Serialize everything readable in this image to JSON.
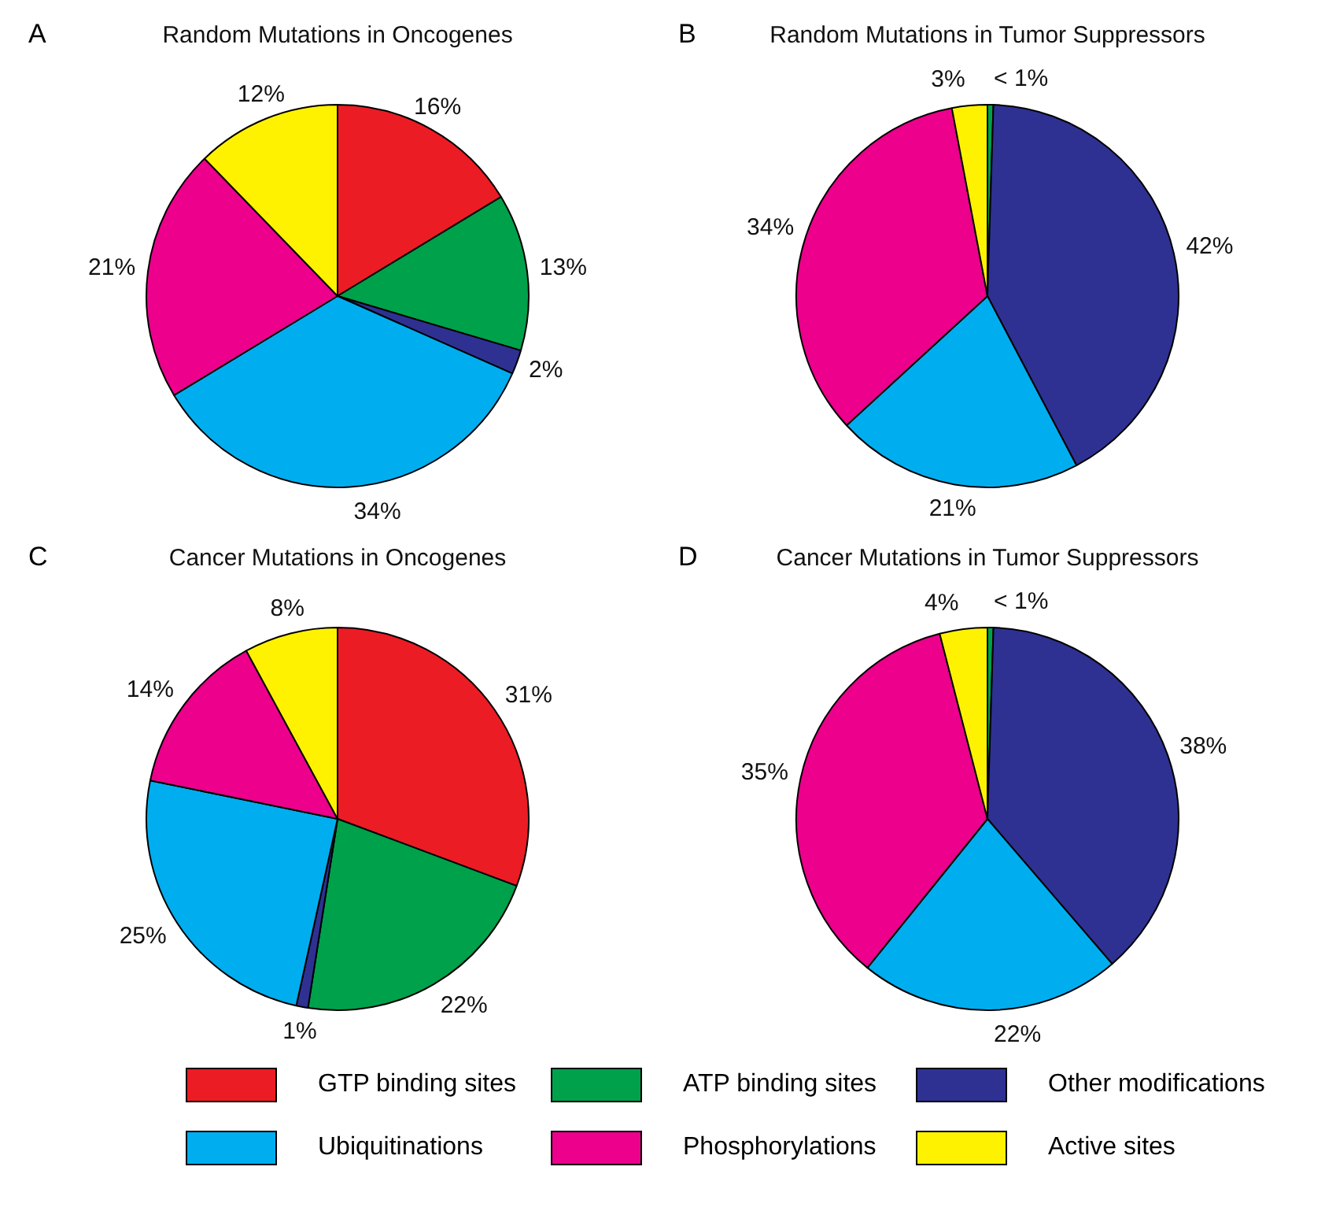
{
  "chart_data": [
    {
      "type": "pie",
      "title": "Random Mutations in Oncogenes",
      "annotations": [
        "A"
      ],
      "legend": "bottom",
      "categories": [
        "GTP binding sites",
        "ATP binding sites",
        "Other modifications",
        "Ubiquitinations",
        "Phosphorylations",
        "Active sites"
      ],
      "values": [
        16,
        13,
        2,
        34,
        21,
        12
      ],
      "colors": [
        "#ec1c24",
        "#00a14b",
        "#2e3192",
        "#00aeef",
        "#ec008c",
        "#fff200"
      ],
      "value_labels": [
        "16%",
        "13%",
        "2%",
        "34%",
        "21%",
        "12%"
      ]
    },
    {
      "type": "pie",
      "title": "Random Mutations in Tumor Suppressors",
      "annotations": [
        "B"
      ],
      "categories": [
        null,
        null,
        null,
        null,
        null
      ],
      "values": [
        0.5,
        42,
        21,
        34,
        3
      ],
      "colors": [
        "#00a14b",
        "#2e3192",
        "#00aeef",
        "#ec008c",
        "#fff200"
      ],
      "value_labels": [
        "< 1%",
        "42%",
        "21%",
        "34%",
        "3%"
      ]
    },
    {
      "type": "pie",
      "title": "Cancer Mutations in Oncogenes",
      "annotations": [
        "C"
      ],
      "categories": [
        null,
        null,
        null,
        null,
        null,
        null
      ],
      "values": [
        31,
        22,
        1,
        25,
        14,
        8
      ],
      "colors": [
        "#ec1c24",
        "#00a14b",
        "#2e3192",
        "#00aeef",
        "#ec008c",
        "#fff200"
      ],
      "value_labels": [
        "31%",
        "22%",
        "1%",
        "25%",
        "14%",
        "8%"
      ]
    },
    {
      "type": "pie",
      "title": "Cancer Mutations in Tumor Suppressors",
      "annotations": [
        "D"
      ],
      "categories": [
        null,
        null,
        null,
        null,
        null
      ],
      "values": [
        0.5,
        38,
        22,
        35,
        4
      ],
      "colors": [
        "#00a14b",
        "#2e3192",
        "#00aeef",
        "#ec008c",
        "#fff200"
      ],
      "value_labels": [
        "< 1%",
        "38%",
        "22%",
        "35%",
        "4%"
      ]
    }
  ]
}
